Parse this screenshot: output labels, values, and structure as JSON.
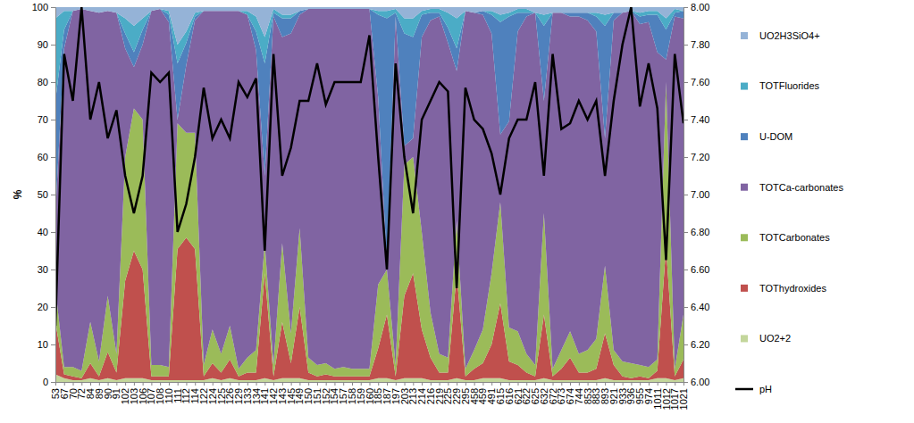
{
  "chart_data": {
    "type": "area",
    "stacked": true,
    "grid": false,
    "legend": "right",
    "y_label": "%",
    "categories": [
      "53",
      "67",
      "70",
      "72",
      "84",
      "89",
      "90",
      "91",
      "102",
      "103",
      "106",
      "107",
      "108",
      "110",
      "111",
      "112",
      "114",
      "122",
      "124",
      "125",
      "126",
      "129",
      "133",
      "134",
      "141",
      "142",
      "143",
      "145",
      "149",
      "150",
      "151",
      "152",
      "154",
      "157",
      "158",
      "159",
      "160",
      "185",
      "187",
      "197",
      "203",
      "213",
      "214",
      "216",
      "219",
      "225",
      "229",
      "295",
      "458",
      "459",
      "491",
      "615",
      "616",
      "621",
      "622",
      "625",
      "632",
      "672",
      "673",
      "674",
      "744",
      "853",
      "883",
      "893",
      "921",
      "933",
      "936",
      "955",
      "974",
      "1011",
      "1012",
      "1017",
      "1021"
    ],
    "ylim": [
      0,
      100
    ],
    "yticks": [
      0,
      10,
      20,
      30,
      40,
      50,
      60,
      70,
      80,
      90,
      100
    ],
    "y2lim": [
      6,
      8
    ],
    "y2ticks": [
      {
        "value": 6,
        "label": "6.00"
      },
      {
        "value": 6.2,
        "label": "6.20"
      },
      {
        "value": 6.4,
        "label": "6.40"
      },
      {
        "value": 6.6,
        "label": "6.60"
      },
      {
        "value": 6.8,
        "label": "6.80"
      },
      {
        "value": 7,
        "label": "7.00"
      },
      {
        "value": 7.2,
        "label": "7.20"
      },
      {
        "value": 7.4,
        "label": "7.40"
      },
      {
        "value": 7.6,
        "label": "7.60"
      },
      {
        "value": 7.8,
        "label": "7.80"
      },
      {
        "value": 8,
        "label": "8.00"
      }
    ],
    "series": [
      {
        "name": "UO2+2",
        "color": "#c3d69b",
        "values": [
          2,
          1,
          0.5,
          0.5,
          1,
          0.5,
          1,
          0.5,
          1,
          1,
          1,
          0.5,
          0.5,
          0.5,
          0.5,
          0.5,
          0.5,
          0.5,
          1,
          0.5,
          1,
          0.5,
          0.5,
          0.5,
          1,
          0.5,
          1,
          1,
          1,
          0.5,
          0.5,
          0.5,
          0.5,
          0.5,
          0.5,
          0.5,
          0.5,
          1,
          1,
          0.5,
          1,
          1,
          1,
          0.5,
          0.5,
          0.5,
          1,
          0.5,
          0.5,
          1,
          1,
          1,
          0.5,
          0.5,
          0.5,
          0.5,
          1,
          0.5,
          0.5,
          0.5,
          0.5,
          0.5,
          0.5,
          1,
          0.5,
          0.5,
          0.5,
          0.5,
          0.5,
          1,
          1,
          0.5,
          1
        ]
      },
      {
        "name": "TOThydroxides",
        "color": "#c0504d",
        "values": [
          14,
          1,
          1,
          0.5,
          4,
          1,
          7,
          2,
          26,
          34,
          29,
          1,
          1,
          1,
          35,
          38,
          35,
          1,
          4,
          2,
          5,
          1,
          2,
          2,
          28,
          1,
          15,
          4,
          19,
          2,
          1,
          1.5,
          1,
          1,
          1,
          1,
          1,
          8,
          17,
          1,
          22,
          28,
          13,
          6,
          2,
          2,
          28,
          1,
          3,
          4,
          9,
          20,
          5,
          4,
          2,
          1,
          17,
          1,
          3,
          6,
          2,
          2,
          3,
          12,
          4,
          1,
          0.5,
          1,
          0.5,
          2,
          35,
          1,
          5
        ]
      },
      {
        "name": "TOTCarbonates",
        "color": "#9bbb59",
        "values": [
          9,
          2,
          2.5,
          2,
          11,
          4,
          15,
          5,
          33,
          38,
          40,
          3,
          3,
          2.5,
          33.5,
          28,
          31,
          3,
          9,
          5,
          9,
          2,
          4,
          6,
          8,
          3,
          21,
          8,
          21,
          4,
          3,
          3,
          2,
          2.5,
          2,
          2,
          2,
          17,
          12,
          3,
          35,
          31,
          26,
          12,
          5,
          4,
          14,
          2,
          5,
          9,
          19,
          27,
          9,
          9,
          5,
          3,
          27,
          2,
          5,
          7,
          5,
          6,
          8,
          18,
          4,
          4,
          4,
          3,
          3,
          3,
          44,
          2,
          12
        ]
      },
      {
        "name": "TOTCa-carbonates",
        "color": "#8064a2",
        "values": [
          20,
          85,
          95,
          96.5,
          83,
          93,
          76,
          91,
          29,
          11,
          20,
          94.5,
          95,
          92,
          1,
          18,
          30,
          94.5,
          85,
          91.5,
          84,
          95.5,
          91.5,
          80,
          18,
          93,
          55,
          80,
          57,
          93,
          95,
          94.5,
          96,
          95.5,
          96,
          96,
          96,
          50,
          2,
          93,
          5,
          5,
          52,
          78,
          90,
          84,
          40,
          95.5,
          90,
          84,
          64,
          18,
          55,
          80,
          90,
          94,
          30,
          95,
          90,
          84,
          90,
          88,
          82,
          34,
          88,
          93,
          94,
          91,
          92,
          82,
          6,
          94,
          79
        ]
      },
      {
        "name": "U-DOM",
        "color": "#4f81bd",
        "values": [
          30,
          5,
          0,
          0,
          0,
          0,
          0,
          0,
          4,
          4,
          4,
          0,
          0,
          2,
          15,
          6,
          1,
          0,
          0,
          0,
          0,
          0,
          0,
          5,
          30,
          1,
          5,
          4,
          1,
          0,
          0,
          0,
          0,
          0,
          0,
          0,
          0,
          22,
          65,
          1,
          30,
          27,
          6,
          2,
          1,
          4,
          6,
          0,
          0,
          1,
          5,
          30,
          28,
          5,
          1,
          0,
          20,
          0,
          0,
          1,
          1,
          2,
          4,
          30,
          2,
          0,
          0,
          2,
          2,
          10,
          8,
          1,
          2
        ]
      },
      {
        "name": "TOTFluorides",
        "color": "#4bacc6",
        "values": [
          22,
          5,
          0,
          0,
          0,
          0,
          0,
          0,
          4,
          7,
          3,
          0,
          0,
          1,
          5,
          3,
          1,
          0,
          0,
          0,
          0,
          0,
          1,
          4,
          7,
          1,
          1,
          1,
          0,
          0,
          0,
          0,
          0,
          0,
          0,
          0,
          0,
          1,
          2,
          1,
          4,
          5,
          1,
          1,
          1,
          4,
          8,
          0,
          0,
          0,
          1,
          2,
          1,
          1,
          1,
          0,
          3,
          0,
          0,
          0,
          0,
          0,
          1,
          3,
          0,
          0,
          0,
          1,
          1,
          1,
          3,
          1,
          0
        ]
      },
      {
        "name": "UO2H3SiO4+",
        "color": "#95b3d7",
        "values": [
          3,
          1,
          1,
          0.5,
          1,
          1.5,
          1,
          1.5,
          3,
          5,
          3,
          1,
          0.5,
          1,
          10,
          6.5,
          1.5,
          1,
          1,
          1,
          1,
          1,
          1,
          2.5,
          8,
          0.5,
          2,
          2,
          1,
          0.5,
          0.5,
          0.5,
          0.5,
          0.5,
          0.5,
          0.5,
          0.5,
          1,
          1,
          0.5,
          3,
          3,
          1,
          0.5,
          0.5,
          1.5,
          3,
          1,
          1.5,
          1,
          1,
          2,
          1.5,
          0.5,
          0.5,
          1.5,
          2,
          1.5,
          1.5,
          1.5,
          1.5,
          1.5,
          1.5,
          2,
          1.5,
          1.5,
          1,
          1.5,
          1,
          1,
          3,
          0.5,
          1
        ]
      },
      {
        "name": "pH",
        "color": "#000000",
        "type": "line",
        "axis": "y2",
        "values": [
          6.3,
          7.75,
          7.5,
          8,
          7.4,
          7.6,
          7.3,
          7.45,
          7.1,
          6.9,
          7.1,
          7.65,
          7.6,
          7.65,
          6.8,
          6.95,
          7.2,
          7.57,
          7.3,
          7.4,
          7.3,
          7.6,
          7.52,
          7.62,
          6.7,
          7.75,
          7.1,
          7.25,
          7.5,
          7.5,
          7.7,
          7.48,
          7.6,
          7.6,
          7.6,
          7.6,
          7.85,
          7.2,
          6.6,
          7.7,
          7.2,
          6.9,
          7.4,
          7.5,
          7.6,
          7.55,
          6.5,
          7.57,
          7.4,
          7.35,
          7.22,
          7,
          7.3,
          7.4,
          7.4,
          7.6,
          7.1,
          7.75,
          7.35,
          7.38,
          7.5,
          7.4,
          7.5,
          7.1,
          7.5,
          7.8,
          8,
          7.47,
          7.7,
          7.46,
          6.65,
          7.75,
          7.38
        ]
      }
    ]
  }
}
